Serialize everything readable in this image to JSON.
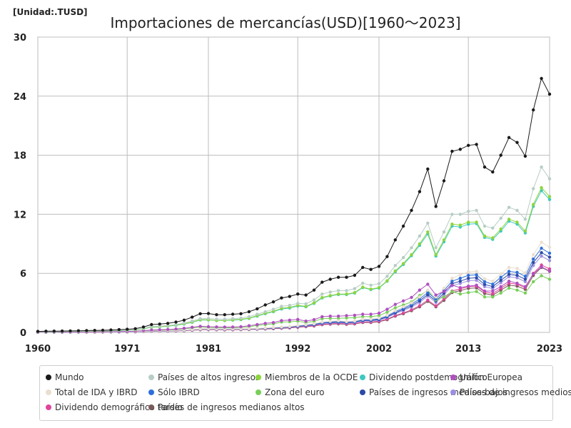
{
  "chart_data": {
    "type": "line",
    "title": "Importaciones de mercancías(USD)[1960〜2023]",
    "unit_label": "[Unidad:.TUSD]",
    "xlabel": "",
    "ylabel": "",
    "xlim": [
      1960,
      2023
    ],
    "ylim": [
      0,
      30
    ],
    "x_ticks": [
      1960,
      1971,
      1981,
      1992,
      2002,
      2013,
      2023
    ],
    "y_ticks": [
      0,
      6,
      12,
      18,
      24,
      30
    ],
    "grid": true,
    "legend_position": "bottom",
    "x": [
      1960,
      1961,
      1962,
      1963,
      1964,
      1965,
      1966,
      1967,
      1968,
      1969,
      1970,
      1971,
      1972,
      1973,
      1974,
      1975,
      1976,
      1977,
      1978,
      1979,
      1980,
      1981,
      1982,
      1983,
      1984,
      1985,
      1986,
      1987,
      1988,
      1989,
      1990,
      1991,
      1992,
      1993,
      1994,
      1995,
      1996,
      1997,
      1998,
      1999,
      2000,
      2001,
      2002,
      2003,
      2004,
      2005,
      2006,
      2007,
      2008,
      2009,
      2010,
      2011,
      2012,
      2013,
      2014,
      2015,
      2016,
      2017,
      2018,
      2019,
      2020,
      2021,
      2022,
      2023
    ],
    "series": [
      {
        "name": "Mundo",
        "color": "#1a1a1a",
        "values": [
          0.1,
          0.12,
          0.13,
          0.14,
          0.15,
          0.17,
          0.19,
          0.2,
          0.22,
          0.25,
          0.28,
          0.32,
          0.38,
          0.55,
          0.8,
          0.85,
          0.92,
          1.05,
          1.25,
          1.55,
          1.9,
          1.92,
          1.8,
          1.8,
          1.85,
          1.9,
          2.1,
          2.4,
          2.8,
          3.1,
          3.5,
          3.65,
          3.9,
          3.8,
          4.3,
          5.1,
          5.4,
          5.6,
          5.6,
          5.8,
          6.6,
          6.4,
          6.7,
          7.7,
          9.4,
          10.8,
          12.4,
          14.3,
          16.6,
          12.8,
          15.4,
          18.4,
          18.6,
          19.0,
          19.1,
          16.8,
          16.3,
          18.0,
          19.8,
          19.3,
          17.9,
          22.6,
          25.8,
          24.2
        ]
      },
      {
        "name": "Países de altos ingresos",
        "color": "#b7cdc6",
        "values": [
          0.08,
          0.09,
          0.1,
          0.11,
          0.12,
          0.13,
          0.15,
          0.16,
          0.17,
          0.19,
          0.22,
          0.25,
          0.29,
          0.42,
          0.6,
          0.63,
          0.7,
          0.8,
          0.95,
          1.15,
          1.4,
          1.42,
          1.35,
          1.35,
          1.4,
          1.45,
          1.6,
          1.85,
          2.1,
          2.35,
          2.65,
          2.75,
          2.95,
          2.9,
          3.3,
          3.9,
          4.1,
          4.25,
          4.25,
          4.45,
          5.0,
          4.8,
          4.95,
          5.7,
          6.8,
          7.6,
          8.6,
          9.8,
          11.1,
          8.6,
          10.2,
          12.0,
          12.0,
          12.3,
          12.4,
          10.8,
          10.6,
          11.6,
          12.7,
          12.4,
          11.5,
          14.6,
          16.8,
          15.6
        ]
      },
      {
        "name": "Miembros de la OCDE",
        "color": "#8cd63c",
        "values": [
          0.07,
          0.08,
          0.09,
          0.1,
          0.11,
          0.12,
          0.13,
          0.14,
          0.15,
          0.17,
          0.2,
          0.22,
          0.26,
          0.38,
          0.55,
          0.58,
          0.65,
          0.75,
          0.88,
          1.05,
          1.3,
          1.3,
          1.22,
          1.22,
          1.28,
          1.33,
          1.45,
          1.7,
          1.95,
          2.15,
          2.45,
          2.55,
          2.75,
          2.65,
          3.0,
          3.55,
          3.75,
          3.9,
          3.9,
          4.05,
          4.6,
          4.4,
          4.55,
          5.25,
          6.25,
          7.0,
          7.9,
          9.0,
          10.2,
          7.9,
          9.4,
          11.0,
          10.9,
          11.2,
          11.2,
          9.8,
          9.6,
          10.5,
          11.5,
          11.2,
          10.3,
          13.0,
          14.7,
          13.8
        ]
      },
      {
        "name": "Dividendo postdemográfico",
        "color": "#3ec8c0",
        "values": [
          0.07,
          0.08,
          0.09,
          0.1,
          0.11,
          0.12,
          0.13,
          0.14,
          0.15,
          0.17,
          0.19,
          0.22,
          0.26,
          0.37,
          0.53,
          0.56,
          0.63,
          0.72,
          0.85,
          1.02,
          1.26,
          1.27,
          1.2,
          1.2,
          1.25,
          1.3,
          1.42,
          1.65,
          1.9,
          2.1,
          2.38,
          2.48,
          2.68,
          2.6,
          2.95,
          3.5,
          3.7,
          3.85,
          3.85,
          4.0,
          4.55,
          4.35,
          4.5,
          5.2,
          6.15,
          6.9,
          7.8,
          8.85,
          10.0,
          7.75,
          9.2,
          10.8,
          10.7,
          11.0,
          11.05,
          9.65,
          9.45,
          10.3,
          11.3,
          11.0,
          10.1,
          12.8,
          14.4,
          13.5
        ]
      },
      {
        "name": "Unión Europea",
        "color": "#b04fc0",
        "values": [
          0.03,
          0.035,
          0.04,
          0.045,
          0.05,
          0.055,
          0.06,
          0.065,
          0.07,
          0.08,
          0.09,
          0.1,
          0.12,
          0.18,
          0.25,
          0.27,
          0.3,
          0.35,
          0.42,
          0.52,
          0.62,
          0.58,
          0.56,
          0.55,
          0.55,
          0.58,
          0.68,
          0.8,
          0.92,
          1.0,
          1.2,
          1.25,
          1.32,
          1.15,
          1.3,
          1.6,
          1.65,
          1.65,
          1.7,
          1.75,
          1.85,
          1.85,
          1.95,
          2.35,
          2.85,
          3.2,
          3.55,
          4.3,
          4.9,
          3.8,
          4.15,
          4.8,
          4.55,
          4.7,
          4.8,
          4.2,
          4.2,
          4.65,
          5.2,
          5.0,
          4.65,
          5.95,
          6.65,
          6.25
        ]
      },
      {
        "name": "Total de IDA y IBRD",
        "color": "#eadfce",
        "values": [
          0.02,
          0.022,
          0.024,
          0.026,
          0.028,
          0.03,
          0.033,
          0.036,
          0.04,
          0.045,
          0.05,
          0.055,
          0.065,
          0.1,
          0.15,
          0.16,
          0.18,
          0.2,
          0.23,
          0.28,
          0.35,
          0.37,
          0.35,
          0.34,
          0.35,
          0.36,
          0.38,
          0.4,
          0.45,
          0.5,
          0.55,
          0.6,
          0.7,
          0.78,
          0.88,
          1.05,
          1.12,
          1.18,
          1.1,
          1.15,
          1.35,
          1.35,
          1.45,
          1.75,
          2.2,
          2.6,
          3.0,
          3.6,
          4.3,
          3.6,
          4.5,
          5.5,
          5.85,
          6.15,
          6.2,
          5.45,
          5.2,
          5.95,
          6.6,
          6.5,
          6.05,
          7.9,
          9.15,
          8.65
        ]
      },
      {
        "name": "Sólo IBRD",
        "color": "#2f6fd9",
        "values": [
          0.02,
          0.022,
          0.024,
          0.026,
          0.028,
          0.03,
          0.033,
          0.036,
          0.04,
          0.045,
          0.05,
          0.055,
          0.065,
          0.1,
          0.15,
          0.16,
          0.18,
          0.2,
          0.23,
          0.28,
          0.34,
          0.36,
          0.34,
          0.33,
          0.34,
          0.35,
          0.37,
          0.39,
          0.43,
          0.48,
          0.52,
          0.57,
          0.66,
          0.74,
          0.83,
          1.0,
          1.06,
          1.12,
          1.05,
          1.1,
          1.28,
          1.28,
          1.38,
          1.65,
          2.1,
          2.45,
          2.85,
          3.4,
          4.05,
          3.4,
          4.25,
          5.2,
          5.5,
          5.8,
          5.85,
          5.15,
          4.9,
          5.6,
          6.2,
          6.1,
          5.7,
          7.45,
          8.55,
          8.05
        ]
      },
      {
        "name": "Zona del euro",
        "color": "#78cf5a",
        "values": [
          0.025,
          0.028,
          0.032,
          0.036,
          0.04,
          0.045,
          0.05,
          0.055,
          0.06,
          0.068,
          0.08,
          0.09,
          0.1,
          0.15,
          0.22,
          0.23,
          0.26,
          0.3,
          0.36,
          0.45,
          0.54,
          0.5,
          0.48,
          0.47,
          0.47,
          0.5,
          0.58,
          0.7,
          0.8,
          0.87,
          1.05,
          1.08,
          1.15,
          1.0,
          1.12,
          1.4,
          1.43,
          1.43,
          1.47,
          1.5,
          1.6,
          1.6,
          1.7,
          2.05,
          2.5,
          2.8,
          3.1,
          3.75,
          4.25,
          3.3,
          3.6,
          4.15,
          3.9,
          4.05,
          4.15,
          3.6,
          3.6,
          4.0,
          4.5,
          4.3,
          4.0,
          5.15,
          5.75,
          5.4
        ]
      },
      {
        "name": "Países de ingresos medios-bajos",
        "color": "#2c4aa8",
        "values": [
          0.02,
          0.022,
          0.024,
          0.026,
          0.028,
          0.03,
          0.033,
          0.036,
          0.04,
          0.045,
          0.05,
          0.055,
          0.063,
          0.1,
          0.14,
          0.15,
          0.17,
          0.19,
          0.22,
          0.27,
          0.33,
          0.35,
          0.33,
          0.32,
          0.33,
          0.34,
          0.36,
          0.38,
          0.42,
          0.46,
          0.5,
          0.55,
          0.63,
          0.7,
          0.78,
          0.95,
          1.0,
          1.05,
          1.0,
          1.05,
          1.22,
          1.22,
          1.3,
          1.58,
          2.0,
          2.33,
          2.7,
          3.2,
          3.85,
          3.2,
          4.0,
          4.95,
          5.2,
          5.5,
          5.55,
          4.88,
          4.65,
          5.3,
          5.9,
          5.8,
          5.4,
          7.1,
          8.1,
          7.65
        ]
      },
      {
        "name": "Países de ingresos medios",
        "color": "#9b8fe0",
        "values": [
          0.018,
          0.02,
          0.022,
          0.024,
          0.026,
          0.028,
          0.031,
          0.034,
          0.037,
          0.042,
          0.047,
          0.052,
          0.06,
          0.095,
          0.135,
          0.145,
          0.16,
          0.18,
          0.21,
          0.26,
          0.32,
          0.34,
          0.32,
          0.31,
          0.32,
          0.33,
          0.35,
          0.37,
          0.4,
          0.44,
          0.48,
          0.53,
          0.6,
          0.67,
          0.75,
          0.9,
          0.96,
          1.0,
          0.95,
          1.0,
          1.17,
          1.17,
          1.25,
          1.5,
          1.92,
          2.22,
          2.58,
          3.05,
          3.68,
          3.05,
          3.82,
          4.75,
          4.98,
          5.25,
          5.3,
          4.65,
          4.45,
          5.05,
          5.65,
          5.55,
          5.15,
          6.8,
          7.75,
          7.3
        ]
      },
      {
        "name": "Dividendo demográfico tardío",
        "color": "#e0459a",
        "values": [
          0.015,
          0.017,
          0.019,
          0.021,
          0.023,
          0.025,
          0.028,
          0.03,
          0.033,
          0.037,
          0.042,
          0.047,
          0.055,
          0.085,
          0.12,
          0.13,
          0.145,
          0.165,
          0.19,
          0.235,
          0.29,
          0.31,
          0.29,
          0.28,
          0.29,
          0.3,
          0.32,
          0.34,
          0.37,
          0.4,
          0.44,
          0.48,
          0.55,
          0.61,
          0.68,
          0.82,
          0.87,
          0.91,
          0.86,
          0.9,
          1.06,
          1.06,
          1.13,
          1.35,
          1.72,
          1.98,
          2.3,
          2.72,
          3.28,
          2.7,
          3.4,
          4.2,
          4.42,
          4.65,
          4.7,
          4.12,
          3.95,
          4.48,
          5.0,
          4.9,
          4.55,
          6.0,
          6.85,
          6.45
        ]
      },
      {
        "name": "Países de ingresos medianos altos",
        "color": "#7a5a5a",
        "values": [
          0.013,
          0.015,
          0.017,
          0.019,
          0.021,
          0.023,
          0.026,
          0.028,
          0.031,
          0.035,
          0.04,
          0.045,
          0.052,
          0.08,
          0.11,
          0.12,
          0.135,
          0.155,
          0.18,
          0.22,
          0.27,
          0.29,
          0.27,
          0.26,
          0.27,
          0.28,
          0.3,
          0.32,
          0.35,
          0.38,
          0.42,
          0.46,
          0.52,
          0.58,
          0.65,
          0.78,
          0.83,
          0.87,
          0.82,
          0.86,
          1.01,
          1.01,
          1.08,
          1.29,
          1.65,
          1.9,
          2.2,
          2.6,
          3.15,
          2.6,
          3.25,
          4.05,
          4.25,
          4.48,
          4.52,
          3.95,
          3.78,
          4.3,
          4.8,
          4.7,
          4.38,
          5.78,
          6.6,
          6.2
        ]
      }
    ]
  }
}
